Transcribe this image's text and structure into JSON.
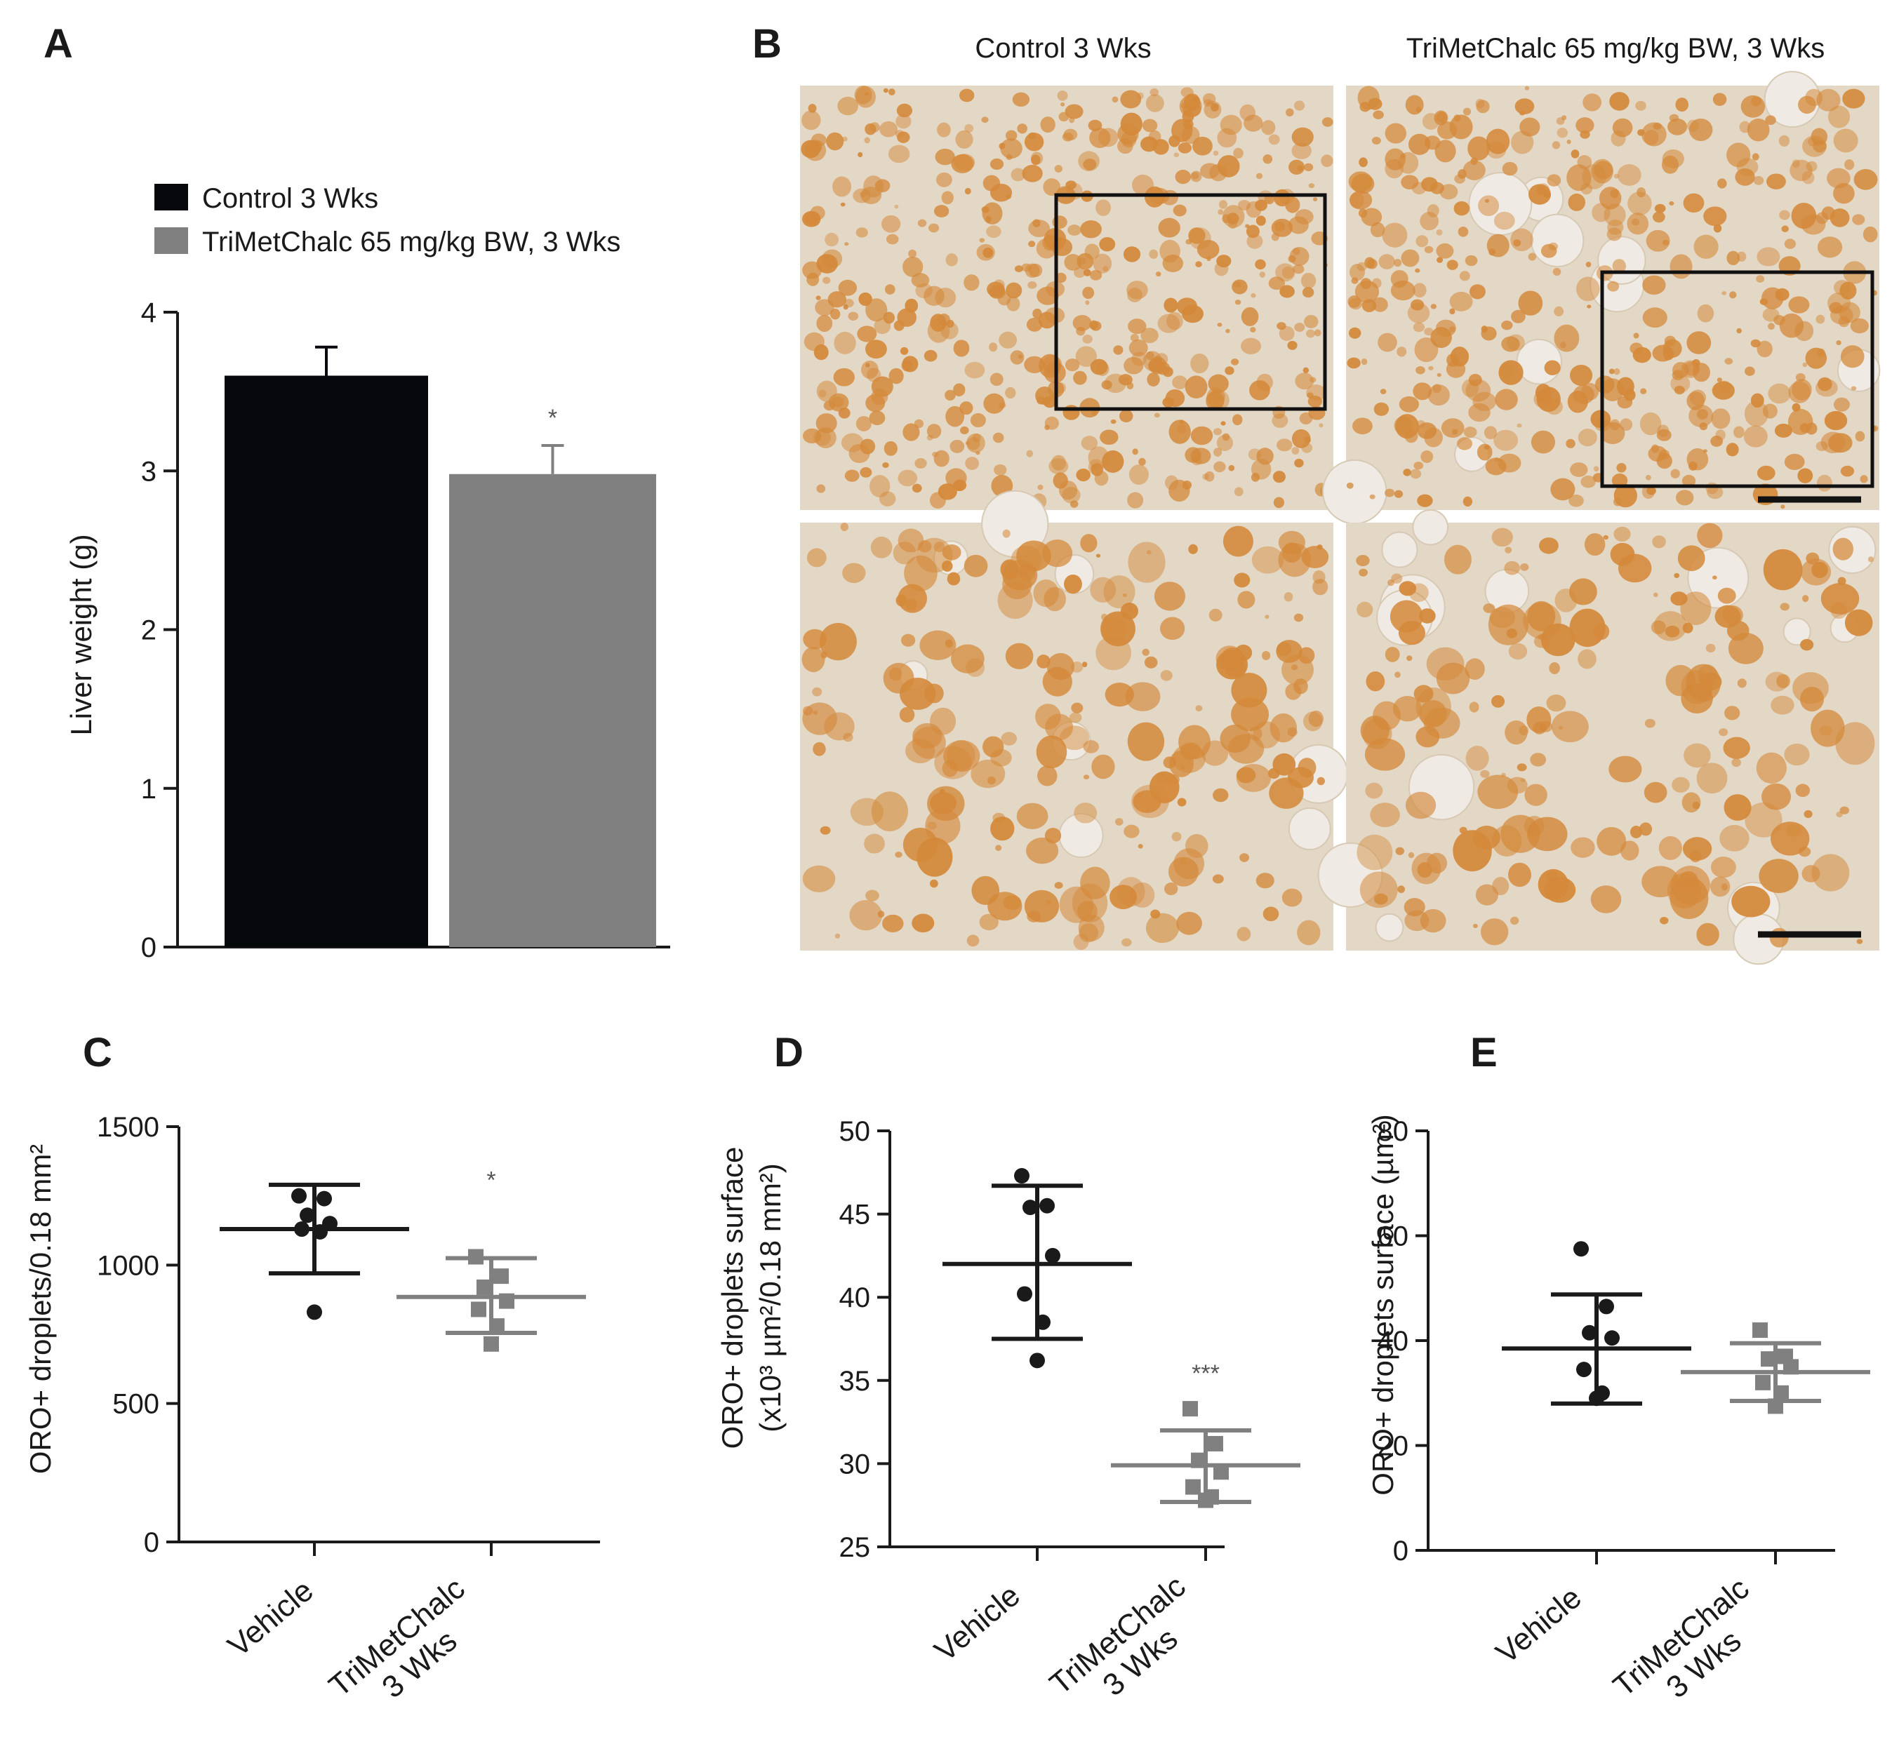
{
  "panels": {
    "a_letter": "A",
    "b_letter": "B",
    "c_letter": "C",
    "d_letter": "D",
    "e_letter": "E"
  },
  "micrographs": {
    "col1_title": "Control 3 Wks",
    "col2_title": "TriMetChalc 65 mg/kg BW, 3 Wks",
    "stain_color": "#d4893a",
    "background_color": "#e3d8c6"
  },
  "chart_data": [
    {
      "id": "A",
      "type": "bar",
      "categories": [
        "Control 3 Wks",
        "TriMetChalc 65 mg/kg BW, 3 Wks"
      ],
      "values": [
        3.6,
        2.98
      ],
      "errors": [
        0.18,
        0.18
      ],
      "colors": [
        "#06080c",
        "#808080"
      ],
      "significance": [
        "",
        "*"
      ],
      "legend": [
        "Control 3 Wks",
        "TriMetChalc 65 mg/kg BW, 3 Wks"
      ],
      "ylabel": "Liver weight (g)",
      "ylim": [
        0,
        4
      ],
      "yticks": [
        0,
        1,
        2,
        3,
        4
      ]
    },
    {
      "id": "C",
      "type": "scatter",
      "categories": [
        "Vehicle",
        "TriMetChalc\n3 Wks"
      ],
      "series": [
        {
          "group": "Vehicle",
          "mean": 1130,
          "sd_low": 970,
          "sd_high": 1290,
          "points": [
            1250,
            1240,
            1180,
            1150,
            1130,
            1120,
            830
          ],
          "marker": "circle",
          "color": "#1a1a1a"
        },
        {
          "group": "TriMetChalc 3 Wks",
          "mean": 885,
          "sd_low": 755,
          "sd_high": 1025,
          "points": [
            1030,
            960,
            920,
            870,
            840,
            780,
            715
          ],
          "marker": "square",
          "color": "#808080"
        }
      ],
      "significance": [
        "",
        "*"
      ],
      "ylabel": "ORO+ droplets/0.18 mm²",
      "ylim": [
        0,
        1500
      ],
      "yticks": [
        0,
        500,
        1000,
        1500
      ]
    },
    {
      "id": "D",
      "type": "scatter",
      "categories": [
        "Vehicle",
        "TriMetChalc\n3 Wks"
      ],
      "series": [
        {
          "group": "Vehicle",
          "mean": 42,
          "sd_low": 37.5,
          "sd_high": 46.7,
          "points": [
            47.3,
            45.5,
            45.4,
            42.5,
            40.2,
            38.5,
            36.2
          ],
          "marker": "circle",
          "color": "#1a1a1a"
        },
        {
          "group": "TriMetChalc 3 Wks",
          "mean": 29.9,
          "sd_low": 27.7,
          "sd_high": 32,
          "points": [
            33.3,
            31.2,
            30.2,
            29.5,
            28.6,
            28,
            27.8
          ],
          "marker": "square",
          "color": "#808080"
        }
      ],
      "significance": [
        "",
        "***"
      ],
      "ylabel_line1": "ORO+ droplets surface",
      "ylabel_line2": "(x10³ µm²/0.18 mm²)",
      "ylim": [
        25,
        50
      ],
      "yticks": [
        25,
        30,
        35,
        40,
        45,
        50
      ]
    },
    {
      "id": "E",
      "type": "scatter",
      "categories": [
        "Vehicle",
        "TriMetChalc\n3 Wks"
      ],
      "series": [
        {
          "group": "Vehicle",
          "mean": 38.5,
          "sd_low": 28,
          "sd_high": 48.8,
          "points": [
            57.5,
            46.5,
            41.5,
            40.5,
            34.5,
            30,
            29
          ],
          "marker": "circle",
          "color": "#1a1a1a"
        },
        {
          "group": "TriMetChalc 3 Wks",
          "mean": 34,
          "sd_low": 28.5,
          "sd_high": 39.5,
          "points": [
            42,
            37,
            36.5,
            35,
            32,
            30,
            27.5
          ],
          "marker": "square",
          "color": "#808080"
        }
      ],
      "significance": [
        "",
        ""
      ],
      "ylabel": "ORO+ droplets surface (µm²)",
      "ylim": [
        0,
        80
      ],
      "yticks": [
        0,
        20,
        40,
        60,
        80
      ]
    }
  ]
}
